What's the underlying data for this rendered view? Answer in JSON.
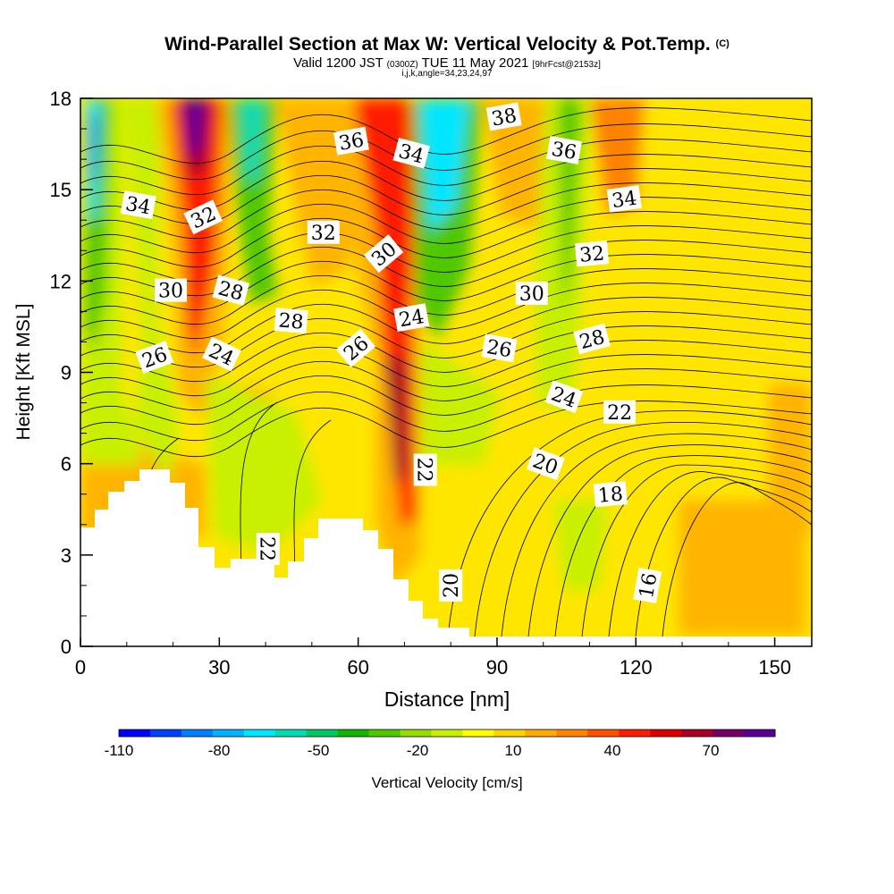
{
  "title": {
    "line1": "Wind-Parallel Section at Max W: Vertical Velocity & Pot.Temp.",
    "line1_mark": "(C)",
    "line2_valid": "Valid 1200 JST",
    "line2_utc": "(0300Z)",
    "line2_date": "TUE 11 May 2021",
    "line2_fcst": "[9hrFcst@2153z]",
    "line3": "i,j,k,angle=34,23,24,97"
  },
  "chart_data": {
    "type": "heatmap",
    "xlabel": "Distance [nm]",
    "ylabel": "Height [Kft MSL]",
    "xlim": [
      0,
      158
    ],
    "ylim": [
      0,
      18
    ],
    "x_ticks": [
      0,
      30,
      60,
      90,
      120,
      150
    ],
    "y_ticks": [
      0,
      3,
      6,
      9,
      12,
      15,
      18
    ],
    "fill_variable": "Vertical Velocity [cm/s]",
    "colorbar": {
      "label": "Vertical Velocity [cm/s]",
      "tick_labels": [
        "-110",
        "-80",
        "-50",
        "-20",
        "10",
        "40",
        "70"
      ],
      "colors": [
        "#0000ff",
        "#0040ff",
        "#0080ff",
        "#00b4ff",
        "#00e6ff",
        "#00dcb4",
        "#00c864",
        "#14b400",
        "#50c800",
        "#96dc00",
        "#c8f000",
        "#ffff00",
        "#ffd200",
        "#ffaa00",
        "#ff8200",
        "#ff5000",
        "#ff1e00",
        "#dc0000",
        "#aa0028",
        "#780064",
        "#5a0096"
      ]
    },
    "contour_variable": "Pot.Temp. (C)",
    "contour_labels": [
      {
        "v": "34",
        "x": 12.5,
        "y": 14.5,
        "rot": 10
      },
      {
        "v": "32",
        "x": 26.5,
        "y": 14.1,
        "rot": -25
      },
      {
        "v": "36",
        "x": 58.5,
        "y": 16.6,
        "rot": -10
      },
      {
        "v": "34",
        "x": 71.5,
        "y": 16.2,
        "rot": 15
      },
      {
        "v": "38",
        "x": 91.5,
        "y": 17.4,
        "rot": -10
      },
      {
        "v": "36",
        "x": 104.5,
        "y": 16.3,
        "rot": 10
      },
      {
        "v": "34",
        "x": 117.5,
        "y": 14.7,
        "rot": -8
      },
      {
        "v": "32",
        "x": 52.5,
        "y": 13.6,
        "rot": 0
      },
      {
        "v": "30",
        "x": 65.5,
        "y": 12.9,
        "rot": -40
      },
      {
        "v": "32",
        "x": 110.5,
        "y": 12.9,
        "rot": -5
      },
      {
        "v": "30",
        "x": 19.5,
        "y": 11.7,
        "rot": 0
      },
      {
        "v": "28",
        "x": 32.5,
        "y": 11.7,
        "rot": 15
      },
      {
        "v": "30",
        "x": 97.5,
        "y": 11.6,
        "rot": 0
      },
      {
        "v": "28",
        "x": 45.5,
        "y": 10.7,
        "rot": 5
      },
      {
        "v": "24",
        "x": 71.5,
        "y": 10.8,
        "rot": -10
      },
      {
        "v": "28",
        "x": 110.5,
        "y": 10.1,
        "rot": -15
      },
      {
        "v": "26",
        "x": 16.0,
        "y": 9.5,
        "rot": -20
      },
      {
        "v": "24",
        "x": 30.5,
        "y": 9.6,
        "rot": 25
      },
      {
        "v": "26",
        "x": 59.5,
        "y": 9.8,
        "rot": -40
      },
      {
        "v": "26",
        "x": 90.5,
        "y": 9.8,
        "rot": 10
      },
      {
        "v": "24",
        "x": 104.5,
        "y": 8.2,
        "rot": 20
      },
      {
        "v": "22",
        "x": 116.5,
        "y": 7.7,
        "rot": 0
      },
      {
        "v": "20",
        "x": 100.5,
        "y": 6.0,
        "rot": 20
      },
      {
        "v": "22",
        "x": 74.5,
        "y": 5.8,
        "rot": 90
      },
      {
        "v": "18",
        "x": 114.5,
        "y": 5.0,
        "rot": -5
      },
      {
        "v": "22",
        "x": 40.5,
        "y": 3.2,
        "rot": 90
      },
      {
        "v": "20",
        "x": 80.0,
        "y": 2.0,
        "rot": -90
      },
      {
        "v": "16",
        "x": 122.5,
        "y": 2.0,
        "rot": -80
      }
    ]
  }
}
